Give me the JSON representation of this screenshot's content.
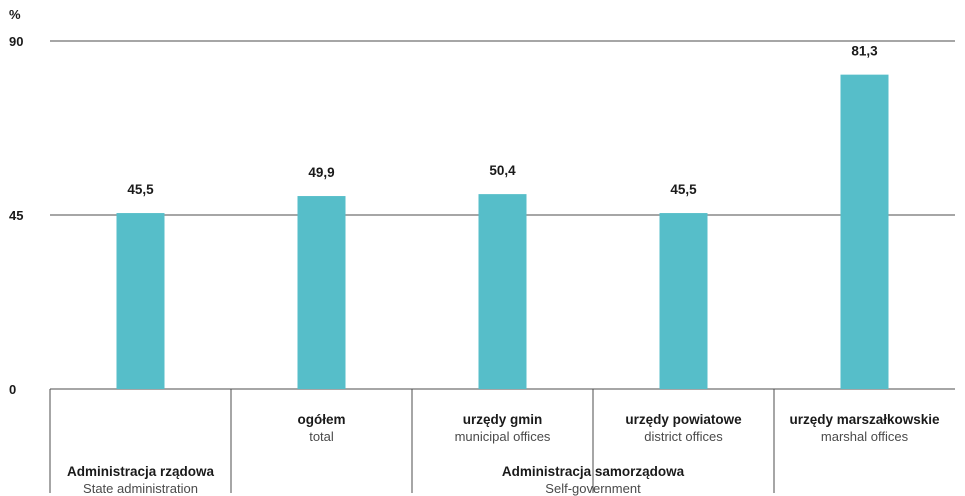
{
  "chart_data": {
    "type": "bar",
    "unit_label": "%",
    "ylim": [
      0,
      90
    ],
    "yticks": [
      "0",
      "45",
      "90"
    ],
    "bar_color": "#56bec9",
    "categories": [
      {
        "pl": "",
        "en": ""
      },
      {
        "pl": "ogółem",
        "en": "total"
      },
      {
        "pl": "urzędy gmin",
        "en": "municipal offices"
      },
      {
        "pl": "urzędy powiatowe",
        "en": "district offices"
      },
      {
        "pl": "urzędy marszałkowskie",
        "en": "marshal offices"
      }
    ],
    "values": [
      45.5,
      49.9,
      50.4,
      45.5,
      81.3
    ],
    "value_labels": [
      "45,5",
      "49,9",
      "50,4",
      "45,5",
      "81,3"
    ],
    "groups": [
      {
        "pl": "Administracja rządowa",
        "en": "State administration"
      },
      {
        "pl": "Administracja samorządowa",
        "en": "Self-government"
      }
    ]
  }
}
